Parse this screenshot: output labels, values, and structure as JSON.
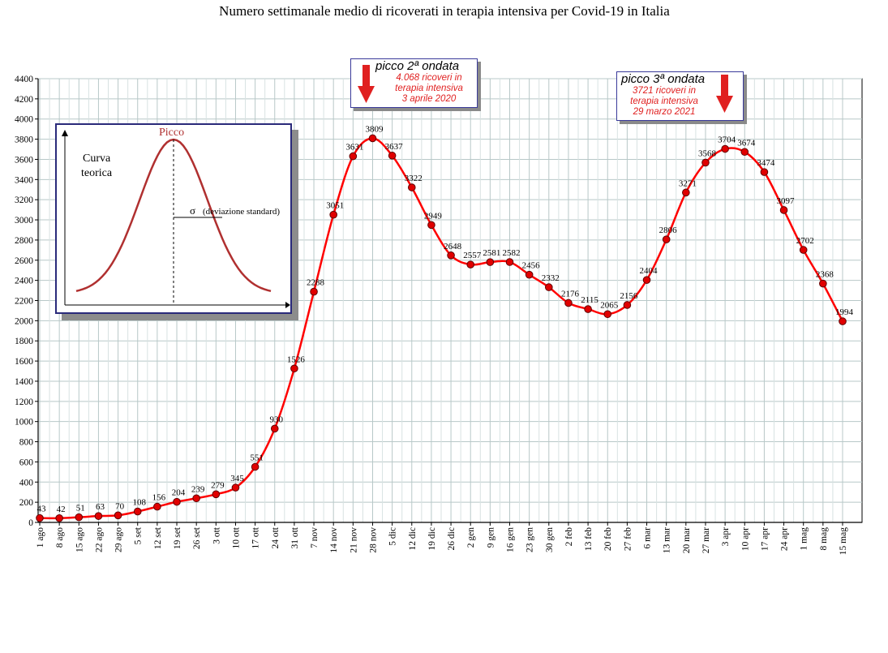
{
  "chart_data": {
    "type": "line",
    "title": "Numero settimanale medio di ricoverati in terapia intensiva per Covid-19 in Italia",
    "xlabel": "",
    "ylabel": "",
    "ylim": [
      0,
      4400
    ],
    "yticks": [
      0,
      200,
      400,
      600,
      800,
      1000,
      1200,
      1400,
      1600,
      1800,
      2000,
      2200,
      2400,
      2600,
      2800,
      3000,
      3200,
      3400,
      3600,
      3800,
      4000,
      4200,
      4400
    ],
    "grid": true,
    "categories": [
      "1 ago",
      "8 ago",
      "15 ago",
      "22 ago",
      "29 ago",
      "5 set",
      "12 set",
      "19 set",
      "26 set",
      "3 ott",
      "10 ott",
      "17 ott",
      "24 ott",
      "31 ott",
      "7 nov",
      "14 nov",
      "21 nov",
      "28 nov",
      "5 dic",
      "12 dic",
      "19 dic",
      "26 dic",
      "2 gen",
      "9 gen",
      "16 gen",
      "23 gen",
      "30 gen",
      "2 feb",
      "13 feb",
      "20 feb",
      "27 feb",
      "6 mar",
      "13 mar",
      "20 mar",
      "27 mar",
      "3 apr",
      "10 apr",
      "17 apr",
      "24 apr",
      "1 mag",
      "8 mag",
      "15 mag"
    ],
    "series": [
      {
        "values": [
          43,
          42,
          51,
          63,
          70,
          108,
          156,
          204,
          239,
          279,
          345,
          551,
          930,
          1526,
          2288,
          3051,
          3631,
          3809,
          3637,
          3322,
          2949,
          2648,
          2557,
          2581,
          2582,
          2456,
          2332,
          2176,
          2115,
          2065,
          2156,
          2404,
          2806,
          3271,
          3568,
          3704,
          3674,
          3474,
          3097,
          2702,
          2368,
          1994
        ],
        "data_labels": [
          "43",
          "42",
          "51",
          "63",
          "70",
          "108",
          "156",
          "204",
          "239",
          "279",
          "345",
          "551",
          "930",
          "1526",
          "2288",
          "3051",
          "3631",
          "3809",
          "3637",
          "3322",
          "2949",
          "2648",
          "2557",
          "2581",
          "2582",
          "2456",
          "2332",
          "2176",
          "2115",
          "2065",
          "2156",
          "2404",
          "2806",
          "3271",
          "3568",
          "3704",
          "3674",
          "3474",
          "3097",
          "2702",
          "2368",
          "1994"
        ],
        "color": "#ff0000",
        "marker_color": "#e00000"
      }
    ],
    "annotations": [
      {
        "title": "picco 2ª ondata",
        "lines": [
          "4.068 ricoveri in",
          "terapia intensiva",
          "3 aprile 2020"
        ],
        "arrow": "down",
        "arrow_color": "#e02020"
      },
      {
        "title": "picco 3ª ondata",
        "lines": [
          "3721 ricoveri in",
          "terapia intensiva",
          "29 marzo 2021"
        ],
        "arrow": "down",
        "arrow_color": "#e02020"
      }
    ],
    "inset": {
      "peak_label": "Picco",
      "curve_label_line1": "Curva",
      "curve_label_line2": "teorica",
      "sigma_symbol": "σ",
      "sigma_label": "(deviazione standard)"
    }
  }
}
